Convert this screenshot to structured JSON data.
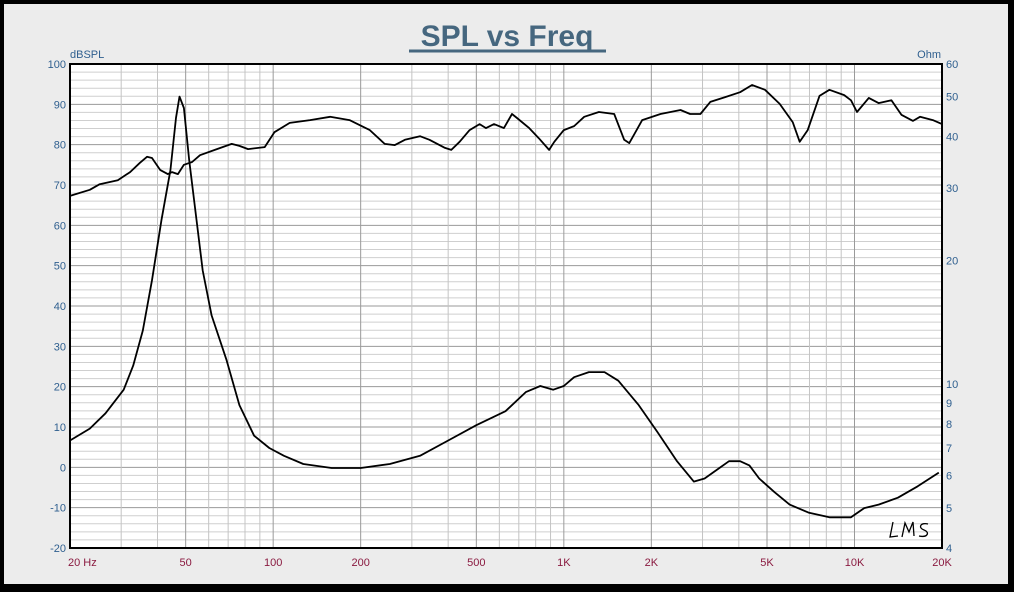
{
  "chart_data": {
    "type": "line",
    "title": "SPL vs Freq",
    "x_scale": "log",
    "xlim": [
      20,
      20000
    ],
    "x_tick_labels": [
      "20  Hz",
      "50",
      "100",
      "200",
      "500",
      "1K",
      "2K",
      "5K",
      "10K",
      "20K"
    ],
    "x_ticks": [
      20,
      50,
      100,
      200,
      500,
      1000,
      2000,
      5000,
      10000,
      20000
    ],
    "left_axis": {
      "label": "dBSPL",
      "ylim": [
        -20,
        100
      ],
      "ticks": [
        100,
        90,
        80,
        70,
        60,
        50,
        40,
        30,
        20,
        10,
        0,
        -10,
        -20
      ]
    },
    "right_axis": {
      "label": "Ohm",
      "scale": "log",
      "ylim": [
        4,
        60
      ],
      "ticks": [
        60,
        50,
        40,
        30,
        20,
        10,
        9,
        8,
        7,
        6,
        5,
        4
      ]
    },
    "grid": true,
    "watermark": "LMS",
    "series": [
      {
        "axis": "left",
        "color": "#000000",
        "x": [
          20,
          23.4,
          25.3,
          29.2,
          32.2,
          34.8,
          36.8,
          38.3,
          40.9,
          43.4,
          44.9,
          47,
          49.3,
          52.6,
          56,
          63,
          72,
          76.5,
          82,
          93.5,
          101,
          114,
          134,
          157,
          183,
          215,
          242,
          262,
          284,
          320,
          345,
          390,
          410,
          438,
          474,
          513,
          540,
          575,
          622,
          663,
          690,
          760,
          820,
          890,
          927,
          1000,
          1085,
          1175,
          1320,
          1490,
          1613,
          1680,
          1860,
          2150,
          2520,
          2720,
          2950,
          3190,
          3590,
          4040,
          4440,
          4920,
          5530,
          6130,
          6480,
          6900,
          7580,
          8200,
          9220,
          9730,
          10200,
          11200,
          12100,
          13400,
          14500,
          15900,
          16800,
          18600,
          20000
        ],
        "y": [
          67.3,
          68.8,
          70.2,
          71.2,
          73.2,
          75.5,
          77,
          76.7,
          73.7,
          72.7,
          73.2,
          72.7,
          75,
          75.7,
          77.4,
          78.7,
          80.2,
          79.7,
          78.9,
          79.4,
          83.1,
          85.4,
          86.1,
          86.9,
          86.1,
          83.6,
          80.2,
          79.9,
          81.2,
          82.1,
          81.2,
          79.2,
          78.7,
          80.7,
          83.6,
          85.1,
          84.1,
          85.1,
          84.1,
          87.6,
          86.6,
          84.1,
          81.6,
          78.7,
          80.7,
          83.6,
          84.6,
          86.9,
          88.1,
          87.6,
          81.2,
          80.4,
          86.1,
          87.6,
          88.6,
          87.6,
          87.6,
          90.6,
          91.8,
          93,
          94.8,
          93.6,
          90.1,
          85.6,
          80.7,
          83.6,
          92.1,
          93.6,
          92.3,
          91,
          88.1,
          91.6,
          90.3,
          91,
          87.4,
          85.9,
          86.9,
          86.1,
          85.1
        ]
      },
      {
        "axis": "right",
        "color": "#000000",
        "x": [
          20,
          23.4,
          26.5,
          30.6,
          33,
          35.6,
          38.3,
          41.3,
          44.3,
          46.3,
          47.6,
          49.3,
          51.4,
          54.5,
          57.2,
          61.4,
          69,
          76.5,
          86,
          97,
          109,
          127,
          159,
          200,
          252,
          320,
          400,
          500,
          630,
          740,
          830,
          920,
          1000,
          1085,
          1220,
          1380,
          1540,
          1810,
          2100,
          2450,
          2800,
          3050,
          3430,
          3700,
          4040,
          4350,
          4700,
          5300,
          5980,
          6980,
          8200,
          9730,
          10800,
          12100,
          14100,
          16500,
          19500
        ],
        "y": [
          7.3,
          7.8,
          8.5,
          9.7,
          11.1,
          13.5,
          17.9,
          25.1,
          33.1,
          44.4,
          50,
          46.9,
          35,
          25.1,
          18.9,
          14.7,
          11.5,
          8.9,
          7.5,
          7.0,
          6.7,
          6.4,
          6.26,
          6.26,
          6.4,
          6.7,
          7.3,
          7.95,
          8.6,
          9.57,
          9.9,
          9.7,
          9.9,
          10.4,
          10.7,
          10.7,
          10.2,
          8.9,
          7.65,
          6.5,
          5.8,
          5.9,
          6.26,
          6.5,
          6.5,
          6.35,
          5.9,
          5.47,
          5.1,
          4.87,
          4.75,
          4.75,
          5.0,
          5.1,
          5.3,
          5.65,
          6.1
        ]
      }
    ]
  }
}
